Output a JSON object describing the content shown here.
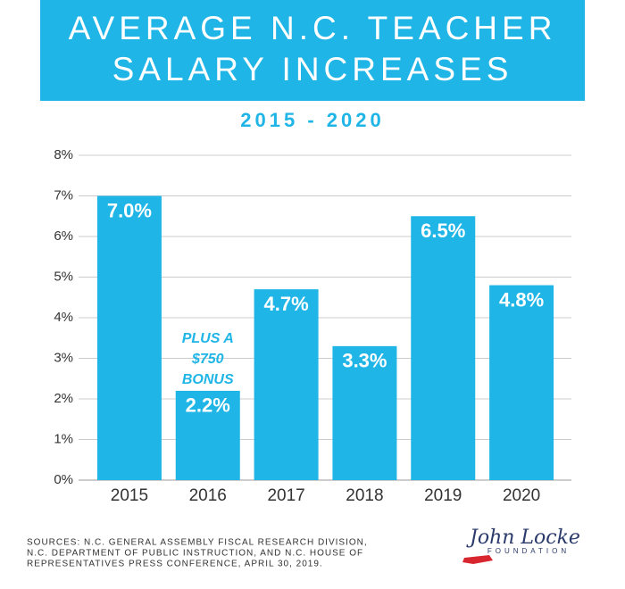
{
  "chart_data": {
    "type": "bar",
    "title": [
      "AVERAGE N.C. TEACHER",
      "SALARY INCREASES"
    ],
    "subtitle": "2015 - 2020",
    "categories": [
      "2015",
      "2016",
      "2017",
      "2018",
      "2019",
      "2020"
    ],
    "values": [
      7.0,
      2.2,
      4.7,
      3.3,
      6.5,
      4.8
    ],
    "value_labels": [
      "7.0%",
      "2.2%",
      "4.7%",
      "3.3%",
      "6.5%",
      "4.8%"
    ],
    "color": "#1fb5e6",
    "ylim": [
      0,
      8
    ],
    "yticks": [
      {
        "value": 0,
        "label": "0%"
      },
      {
        "value": 1,
        "label": "1%"
      },
      {
        "value": 2,
        "label": "2%"
      },
      {
        "value": 3,
        "label": "3%"
      },
      {
        "value": 4,
        "label": "4%"
      },
      {
        "value": 5,
        "label": "5%"
      },
      {
        "value": 6,
        "label": "6%"
      },
      {
        "value": 7,
        "label": "7%"
      },
      {
        "value": 8,
        "label": "8%"
      }
    ],
    "grid": true,
    "annotation": [
      "PLUS A",
      "$750",
      "BONUS"
    ],
    "sources": [
      "SOURCES: N.C. GENERAL ASSEMBLY FISCAL RESEARCH DIVISION,",
      "N.C. DEPARTMENT OF PUBLIC INSTRUCTION, AND N.C. HOUSE OF",
      "REPRESENTATIVES PRESS CONFERENCE, APRIL 30, 2019."
    ],
    "logo": [
      "John Locke",
      "FOUNDATION"
    ]
  }
}
